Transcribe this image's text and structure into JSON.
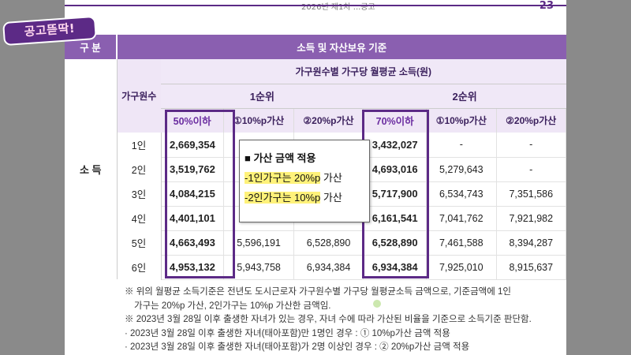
{
  "logo_text": "공고뜯딱!",
  "header": {
    "top_text": "2026년 제1차 ...공고",
    "page_number": "23"
  },
  "table": {
    "gubun": "구 분",
    "main_header": "소득 및 자산보유 기준",
    "household_header": "가구원수",
    "income_header": "가구원수별 가구당 월평균 소득(원)",
    "rank1": "1순위",
    "rank2": "2순위",
    "columns": [
      "50%이하",
      "①10%p가산",
      "②20%p가산",
      "70%이하",
      "①10%p가산",
      "②20%p가산"
    ],
    "category": "소 득",
    "rows": [
      {
        "label": "1인",
        "vals": [
          "2,669,354",
          "",
          "",
          "3,432,027",
          "-",
          "-"
        ]
      },
      {
        "label": "2인",
        "vals": [
          "3,519,762",
          "",
          "",
          "4,693,016",
          "5,279,643",
          "-"
        ]
      },
      {
        "label": "3인",
        "vals": [
          "4,084,215",
          "",
          "",
          "5,717,900",
          "6,534,743",
          "7,351,586"
        ]
      },
      {
        "label": "4인",
        "vals": [
          "4,401,101",
          "",
          "",
          "6,161,541",
          "7,041,762",
          "7,921,982"
        ]
      },
      {
        "label": "5인",
        "vals": [
          "4,663,493",
          "5,596,191",
          "6,528,890",
          "6,528,890",
          "7,461,588",
          "8,394,287"
        ]
      },
      {
        "label": "6인",
        "vals": [
          "4,953,132",
          "5,943,758",
          "6,934,384",
          "6,934,384",
          "7,925,010",
          "8,915,637"
        ]
      }
    ]
  },
  "popup": {
    "title": "■ 가산 금액 적용",
    "line1": "-1인가구는 20%p",
    "line1_suffix": " 가산",
    "line2": "-2인가구는 10%p",
    "line2_suffix": " 가산"
  },
  "notes": [
    "※ 위의 월평균 소득기준은 전년도 도시근로자 가구원수별 가구당 월평균소득 금액으로, 기준금액에 1인",
    "가구는 20%p 가산, 2인가구는 10%p 가산한 금액임.",
    "※ 2023년 3월 28일 이후 출생한 자녀가 있는 경우, 자녀 수에 따라 가산된 비율을 기준으로 소득기준 판단함.",
    "· 2023년 3월 28일 이후 출생한 자녀(태아포함)만 1명인 경우 : ① 10%p가산 금액 적용",
    "· 2023년 3월 28일 이후 출생한 자녀(태아포함)가 2명 이상인 경우 : ② 20%p가산 금액 적용"
  ],
  "colors": {
    "accent": "#5c2a86",
    "header_bg": "#8a5fb0",
    "highlight": "#fff27a"
  }
}
